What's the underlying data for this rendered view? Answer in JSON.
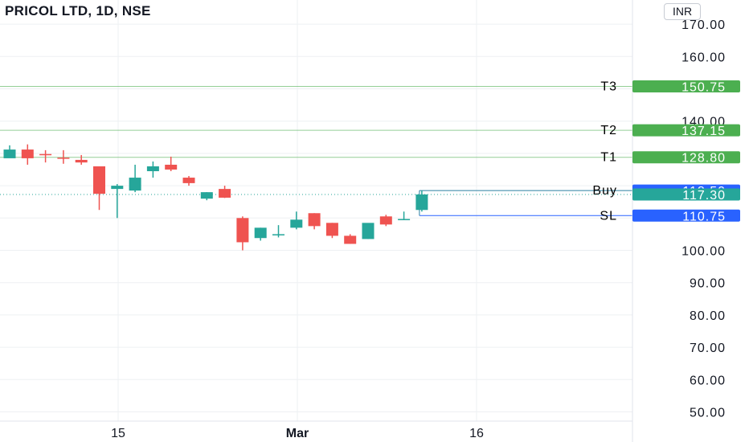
{
  "header": {
    "title": "PRICOL LTD, 1D, NSE",
    "currency": "INR"
  },
  "colors": {
    "up": "#26a69a",
    "down": "#ef5350",
    "target": "#4caf50",
    "sl": "#2962ff",
    "grid": "#eef0f3",
    "axis_text": "#131722"
  },
  "chart_data": {
    "type": "candlestick",
    "title": "PRICOL LTD, 1D, NSE",
    "currency": "INR",
    "ylim": [
      48,
      175
    ],
    "yticks": [
      {
        "value": 170,
        "label": "170.00"
      },
      {
        "value": 160,
        "label": "160.00"
      },
      {
        "value": 140,
        "label": "140.00"
      },
      {
        "value": 100,
        "label": "100.00"
      },
      {
        "value": 90,
        "label": "90.00"
      },
      {
        "value": 80,
        "label": "80.00"
      },
      {
        "value": 70,
        "label": "70.00"
      },
      {
        "value": 60,
        "label": "60.00"
      },
      {
        "value": 50,
        "label": "50.00"
      }
    ],
    "xticks": [
      "15",
      "Mar",
      "16"
    ],
    "candles": [
      {
        "o": 128.5,
        "h": 132.5,
        "l": 129.0,
        "c": 131.2
      },
      {
        "o": 131.2,
        "h": 132.8,
        "l": 126.5,
        "c": 128.5
      },
      {
        "o": 129.8,
        "h": 131.0,
        "l": 127.2,
        "c": 129.5
      },
      {
        "o": 128.7,
        "h": 131.0,
        "l": 126.8,
        "c": 128.4
      },
      {
        "o": 128.0,
        "h": 129.5,
        "l": 126.5,
        "c": 127.2
      },
      {
        "o": 126.0,
        "h": 126.0,
        "l": 112.5,
        "c": 117.5
      },
      {
        "o": 119.0,
        "h": 120.5,
        "l": 110.0,
        "c": 120.0
      },
      {
        "o": 118.5,
        "h": 126.5,
        "l": 118.0,
        "c": 122.5
      },
      {
        "o": 124.5,
        "h": 127.5,
        "l": 122.5,
        "c": 126.0
      },
      {
        "o": 126.5,
        "h": 129.0,
        "l": 124.5,
        "c": 125.0
      },
      {
        "o": 122.5,
        "h": 123.0,
        "l": 120.0,
        "c": 120.8
      },
      {
        "o": 116.0,
        "h": 118.0,
        "l": 115.5,
        "c": 118.0
      },
      {
        "o": 119.0,
        "h": 120.0,
        "l": 116.2,
        "c": 116.3
      },
      {
        "o": 110.0,
        "h": 110.5,
        "l": 100.0,
        "c": 102.5
      },
      {
        "o": 103.8,
        "h": 107.0,
        "l": 103.0,
        "c": 107.0
      },
      {
        "o": 104.8,
        "h": 107.8,
        "l": 104.0,
        "c": 105.0
      },
      {
        "o": 107.0,
        "h": 112.0,
        "l": 106.5,
        "c": 109.5
      },
      {
        "o": 111.5,
        "h": 111.5,
        "l": 106.5,
        "c": 107.5
      },
      {
        "o": 108.5,
        "h": 108.5,
        "l": 103.8,
        "c": 104.5
      },
      {
        "o": 104.5,
        "h": 105.0,
        "l": 102.0,
        "c": 102.0
      },
      {
        "o": 103.5,
        "h": 108.0,
        "l": 103.5,
        "c": 108.5
      },
      {
        "o": 110.5,
        "h": 111.0,
        "l": 107.5,
        "c": 108.0
      },
      {
        "o": 109.5,
        "h": 112.0,
        "l": 109.5,
        "c": 109.7
      },
      {
        "o": 112.5,
        "h": 118.5,
        "l": 112.0,
        "c": 117.3
      }
    ],
    "levels": [
      {
        "name": "T3",
        "value": 150.75,
        "label": "150.75",
        "kind": "target"
      },
      {
        "name": "T2",
        "value": 137.15,
        "label": "137.15",
        "kind": "target"
      },
      {
        "name": "T1",
        "value": 128.8,
        "label": "128.80",
        "kind": "target"
      },
      {
        "name": "Buy",
        "value": 118.5,
        "label": "118.50",
        "kind": "buy"
      },
      {
        "name": "",
        "value": 117.3,
        "label": "117.30",
        "kind": "last"
      },
      {
        "name": "SL",
        "value": 110.75,
        "label": "110.75",
        "kind": "sl"
      }
    ]
  }
}
